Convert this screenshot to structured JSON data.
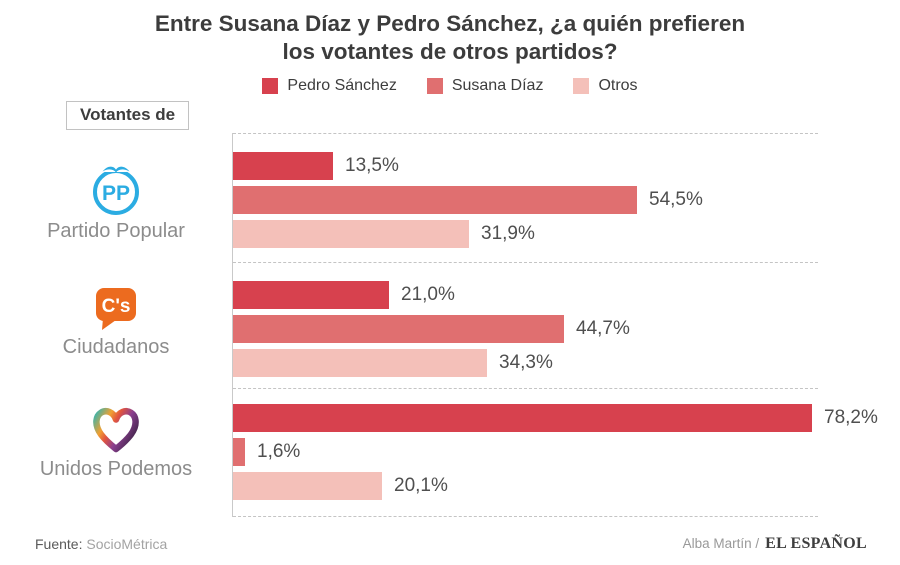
{
  "title": {
    "line1": "Entre Susana Díaz y Pedro Sánchez, ¿a quién prefieren",
    "line2": "los votantes de otros partidos?"
  },
  "votantes_label": "Votantes de",
  "chart_data": {
    "type": "bar",
    "orientation": "horizontal",
    "title": "Entre Susana Díaz y Pedro Sánchez, ¿a quién prefieren los votantes de otros partidos?",
    "legend_position": "top",
    "xlim": [
      0,
      79
    ],
    "grid": "dashed horizontal separators between groups",
    "value_suffix": "%",
    "series": [
      {
        "name": "Pedro Sánchez",
        "color": "#D7414E"
      },
      {
        "name": "Susana Díaz",
        "color": "#E06F70"
      },
      {
        "name": "Otros",
        "color": "#F4C0B9"
      }
    ],
    "groups": [
      {
        "category": "Partido Popular",
        "logo": "pp-logo",
        "values": [
          13.5,
          54.5,
          31.9
        ],
        "labels": [
          "13,5%",
          "54,5%",
          "31,9%"
        ]
      },
      {
        "category": "Ciudadanos",
        "logo": "ciudadanos-logo",
        "values": [
          21.0,
          44.7,
          34.3
        ],
        "labels": [
          "21,0%",
          "44,7%",
          "34,3%"
        ]
      },
      {
        "category": "Unidos Podemos",
        "logo": "unidos-podemos-logo",
        "values": [
          78.2,
          1.6,
          20.1
        ],
        "labels": [
          "78,2%",
          "1,6%",
          "20,1%"
        ]
      }
    ]
  },
  "logo_colors": {
    "pp_blue": "#2BACE2",
    "ciudadanos_orange": "#EC6B1F",
    "podemos_gradient": [
      "#3EB3A8",
      "#F0A032",
      "#E2543F",
      "#8A3E8F",
      "#4F2A57"
    ]
  },
  "footer": {
    "source_label": "Fuente:",
    "source_value": "SocioMétrica",
    "credit_author": "Alba Martín /",
    "credit_brand": "EL ESPAÑOL"
  }
}
